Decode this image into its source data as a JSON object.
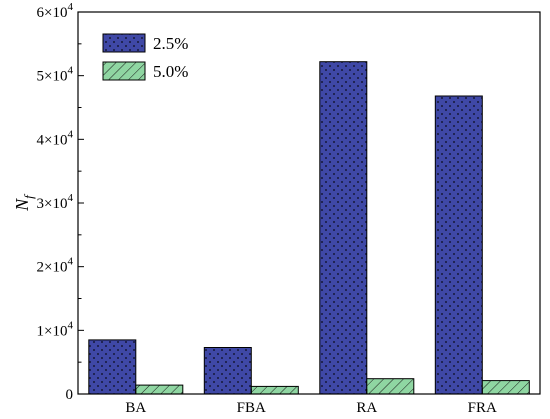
{
  "chart_data": {
    "type": "bar",
    "categories": [
      "BA",
      "FBA",
      "RA",
      "FRA"
    ],
    "series": [
      {
        "name": "2.5%",
        "values": [
          8500,
          7300,
          52200,
          46800
        ],
        "color": "#3f48a6",
        "pattern": "dots"
      },
      {
        "name": "5.0%",
        "values": [
          1400,
          1200,
          2400,
          2100
        ],
        "color": "#8fd6a2",
        "pattern": "hatch"
      }
    ],
    "title": "",
    "xlabel": "",
    "ylabel": "N",
    "ylabel_subscript": "f",
    "ylim": [
      0,
      60000
    ],
    "yticks": [
      0,
      10000,
      20000,
      30000,
      40000,
      50000,
      60000
    ],
    "ytick_labels": [
      {
        "base": "0",
        "exp": ""
      },
      {
        "base": "1×10",
        "exp": "4"
      },
      {
        "base": "2×10",
        "exp": "4"
      },
      {
        "base": "3×10",
        "exp": "4"
      },
      {
        "base": "4×10",
        "exp": "4"
      },
      {
        "base": "5×10",
        "exp": "4"
      },
      {
        "base": "6×10",
        "exp": "4"
      }
    ],
    "legend_position": "top-left",
    "grid": false
  }
}
